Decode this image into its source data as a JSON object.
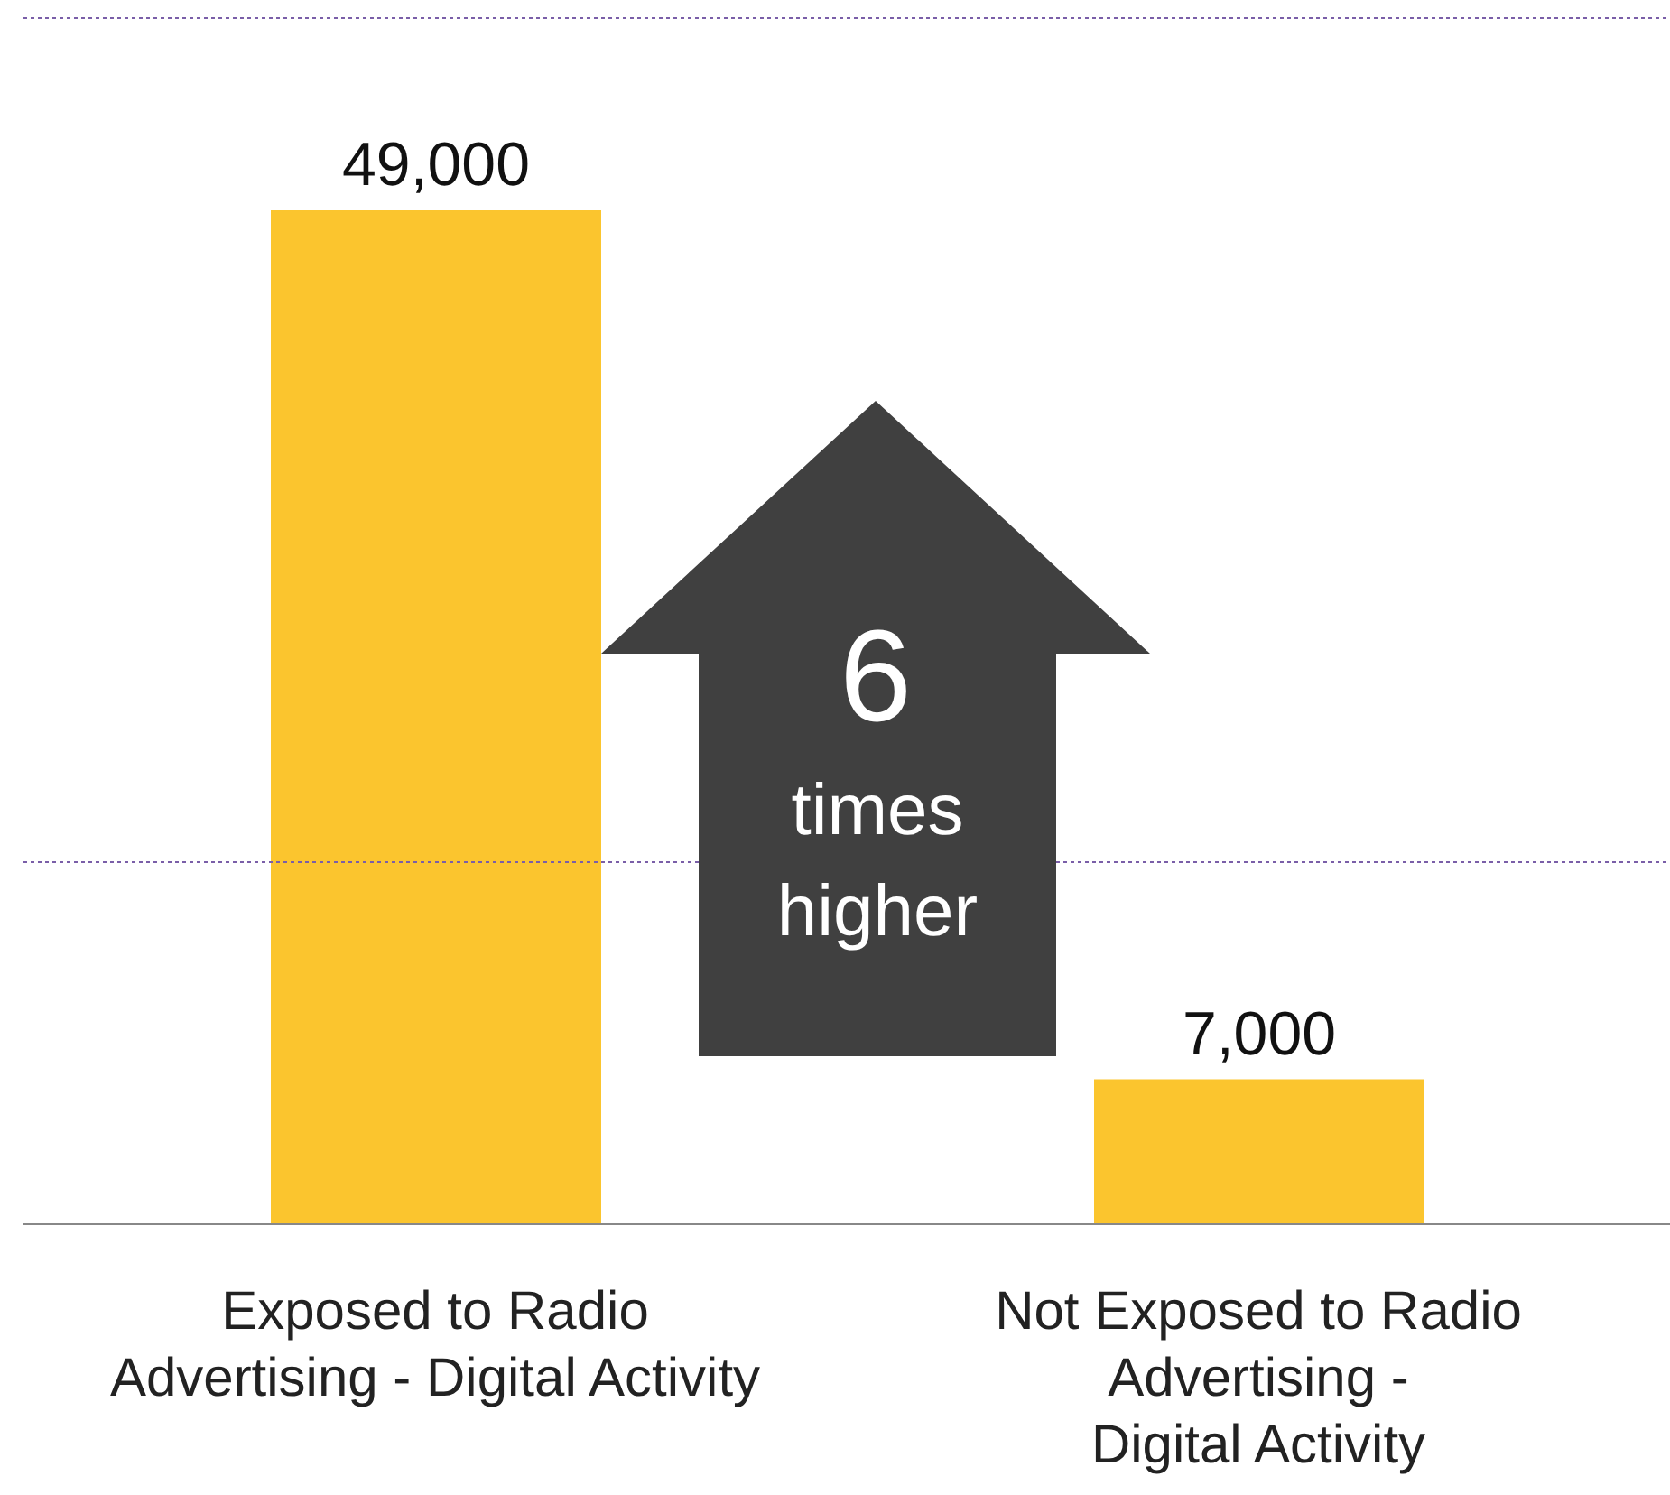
{
  "chart_data": {
    "type": "bar",
    "categories": [
      "Exposed to Radio\nAdvertising - Digital Activity",
      "Not Exposed to Radio\nAdvertising -\nDigital Activity"
    ],
    "values": [
      49000,
      7000
    ],
    "color": "#fbc52e",
    "value_labels": [
      "49,000",
      "7,000"
    ],
    "ref_lines": [
      {
        "axis": "y",
        "value": 17500,
        "color": "#7a5ea8",
        "line_style": "dotted"
      },
      {
        "axis": "y",
        "value": 58300,
        "color": "#7a5ea8",
        "line_style": "dotted"
      }
    ],
    "tick_labels": "x",
    "annotations": [
      "6",
      "times higher"
    ]
  }
}
